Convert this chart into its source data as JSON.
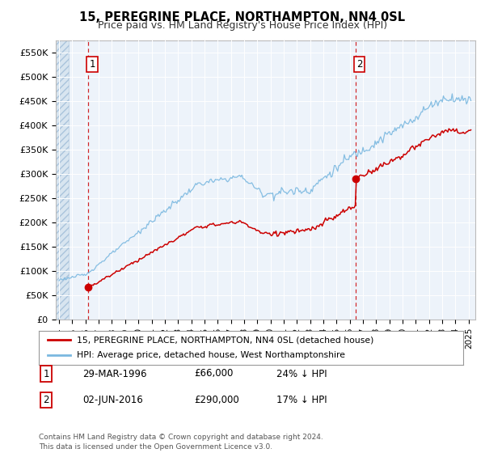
{
  "title": "15, PEREGRINE PLACE, NORTHAMPTON, NN4 0SL",
  "subtitle": "Price paid vs. HM Land Registry's House Price Index (HPI)",
  "legend_line1": "15, PEREGRINE PLACE, NORTHAMPTON, NN4 0SL (detached house)",
  "legend_line2": "HPI: Average price, detached house, West Northamptonshire",
  "transaction1_label": "1",
  "transaction1_date": "29-MAR-1996",
  "transaction1_price": "£66,000",
  "transaction1_hpi": "24% ↓ HPI",
  "transaction2_label": "2",
  "transaction2_date": "02-JUN-2016",
  "transaction2_price": "£290,000",
  "transaction2_hpi": "17% ↓ HPI",
  "footnote": "Contains HM Land Registry data © Crown copyright and database right 2024.\nThis data is licensed under the Open Government Licence v3.0.",
  "hpi_color": "#7ab8e0",
  "price_color": "#cc0000",
  "marker_color": "#cc0000",
  "dashed_line_color": "#cc0000",
  "background_color": "#ffffff",
  "plot_bg_color": "#edf3fa",
  "hatch_bg_color": "#d8e5f0",
  "ylim": [
    0,
    575000
  ],
  "yticks": [
    0,
    50000,
    100000,
    150000,
    200000,
    250000,
    300000,
    350000,
    400000,
    450000,
    500000,
    550000
  ],
  "xlim_start": 1993.75,
  "xlim_end": 2025.5,
  "transaction1_x": 1996.21,
  "transaction1_y": 66000,
  "transaction2_x": 2016.42,
  "transaction2_y": 290000,
  "hpi_start_year": 1994.0,
  "hatch_end_year": 1994.75
}
